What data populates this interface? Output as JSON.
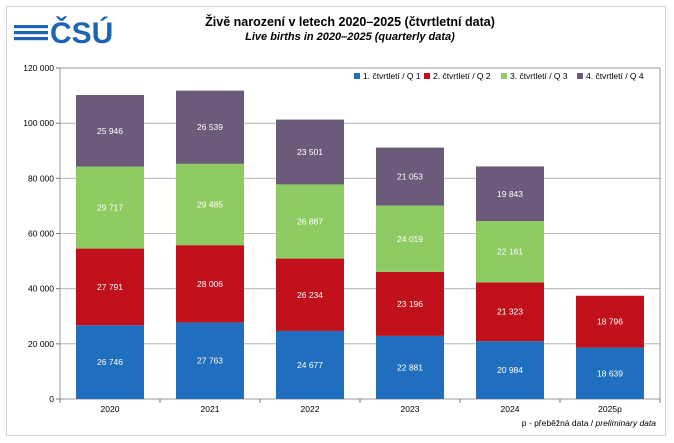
{
  "logo": {
    "text": "ČSÚ",
    "color": "#1f64b4"
  },
  "title": "Živě narození v letech 2020–2025 (čtvrtletní data)",
  "subtitle": "Live births in 2020–2025 (quarterly data)",
  "footnote": {
    "prefix": "p - přeběžná data / ",
    "italic": "preliminary data"
  },
  "chart_data": {
    "type": "bar",
    "stacked": true,
    "title": "Živě narození v letech 2020–2025 (čtvrtletní data)",
    "subtitle": "Live births in 2020–2025 (quarterly data)",
    "categories": [
      "2020",
      "2021",
      "2022",
      "2023",
      "2024",
      "2025p"
    ],
    "ylim": [
      0,
      120000
    ],
    "yticks": [
      0,
      20000,
      40000,
      60000,
      80000,
      100000,
      120000
    ],
    "ytick_labels": [
      "0",
      "20 000",
      "40 000",
      "60 000",
      "80 000",
      "100 000",
      "120 000"
    ],
    "grid": true,
    "legend_position": "top",
    "series": [
      {
        "name": "1. čtvrtletí / Q 1",
        "color": "#1f6fbe",
        "values": [
          26746,
          27763,
          24677,
          22881,
          20984,
          18639
        ],
        "labels": [
          "26 746",
          "27 763",
          "24 677",
          "22 881",
          "20 984",
          "18 639"
        ]
      },
      {
        "name": "2. čtvrtletí / Q 2",
        "color": "#c0101b",
        "values": [
          27791,
          28006,
          26234,
          23196,
          21323,
          18796
        ],
        "labels": [
          "27 791",
          "28 006",
          "26 234",
          "23 196",
          "21 323",
          "18 796"
        ]
      },
      {
        "name": "3. čtvrtletí / Q 3",
        "color": "#8fcb63",
        "values": [
          29717,
          29485,
          26887,
          24019,
          22161,
          null
        ],
        "labels": [
          "29 717",
          "29 485",
          "26 887",
          "24 019",
          "22 161",
          ""
        ]
      },
      {
        "name": "4. čtvrtletí / Q 4",
        "color": "#6b5a7a",
        "values": [
          25946,
          26539,
          23501,
          21053,
          19843,
          null
        ],
        "labels": [
          "25 946",
          "26 539",
          "23 501",
          "21 053",
          "19 843",
          ""
        ]
      }
    ]
  }
}
